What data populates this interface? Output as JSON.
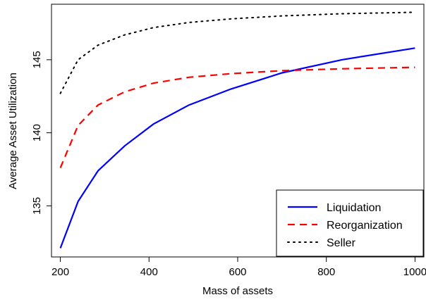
{
  "chart_data": {
    "type": "line",
    "title": "",
    "xlabel": "Mass of assets",
    "ylabel": "Average Asset Utilization",
    "xlim": [
      180,
      1020
    ],
    "ylim": [
      131.5,
      148.8
    ],
    "xticks": [
      200,
      400,
      600,
      800,
      1000
    ],
    "yticks": [
      135,
      140,
      145
    ],
    "grid": false,
    "legend_position": "bottom-right",
    "series": [
      {
        "name": "Liquidation",
        "color": "#0000ff",
        "dash": "solid",
        "x": [
          200,
          240,
          285,
          345,
          410,
          490,
          585,
          700,
          835,
          1000
        ],
        "y": [
          132.1,
          135.3,
          137.4,
          139.1,
          140.6,
          141.9,
          143.0,
          144.1,
          145.0,
          145.8
        ]
      },
      {
        "name": "Reorganization",
        "color": "#ff0000",
        "dash": "dashed",
        "x": [
          200,
          240,
          285,
          345,
          410,
          490,
          585,
          700,
          835,
          1000
        ],
        "y": [
          137.6,
          140.5,
          141.9,
          142.8,
          143.4,
          143.8,
          144.05,
          144.25,
          144.38,
          144.48
        ]
      },
      {
        "name": "Seller",
        "color": "#000000",
        "dash": "dotted",
        "x": [
          200,
          240,
          285,
          345,
          410,
          490,
          585,
          700,
          835,
          1000
        ],
        "y": [
          142.7,
          145.0,
          146.0,
          146.7,
          147.2,
          147.55,
          147.8,
          148.0,
          148.15,
          148.25
        ]
      }
    ]
  }
}
